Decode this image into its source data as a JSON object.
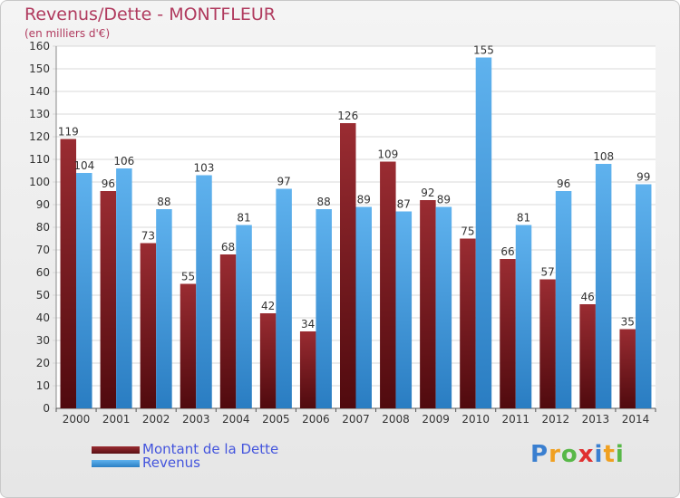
{
  "chart_data": {
    "type": "bar",
    "title": "Revenus/Dette - MONTFLEUR",
    "subtitle": "(en milliers d'€)",
    "categories": [
      "2000",
      "2001",
      "2002",
      "2003",
      "2004",
      "2005",
      "2006",
      "2007",
      "2008",
      "2009",
      "2010",
      "2011",
      "2012",
      "2013",
      "2014"
    ],
    "series": [
      {
        "name": "Montant de la Dette",
        "color": "#7a1f24",
        "values": [
          119,
          96,
          73,
          55,
          68,
          42,
          34,
          126,
          109,
          92,
          75,
          66,
          57,
          46,
          35
        ]
      },
      {
        "name": "Revenus",
        "color": "#3d9de0",
        "values": [
          104,
          106,
          88,
          103,
          81,
          97,
          88,
          89,
          87,
          89,
          155,
          81,
          96,
          108,
          99
        ]
      }
    ],
    "ylim": [
      0,
      160
    ],
    "yticks": [
      0,
      10,
      20,
      30,
      40,
      50,
      60,
      70,
      80,
      90,
      100,
      110,
      120,
      130,
      140,
      150,
      160
    ],
    "grid": true,
    "legend_position": "bottom-left"
  },
  "logo": {
    "letters": [
      "P",
      "r",
      "o",
      "x",
      "i",
      "t",
      "i"
    ],
    "colors": [
      "#3a7fd0",
      "#f0a020",
      "#58b848",
      "#e03030",
      "#3a7fd0",
      "#f0a020",
      "#58b848"
    ]
  }
}
